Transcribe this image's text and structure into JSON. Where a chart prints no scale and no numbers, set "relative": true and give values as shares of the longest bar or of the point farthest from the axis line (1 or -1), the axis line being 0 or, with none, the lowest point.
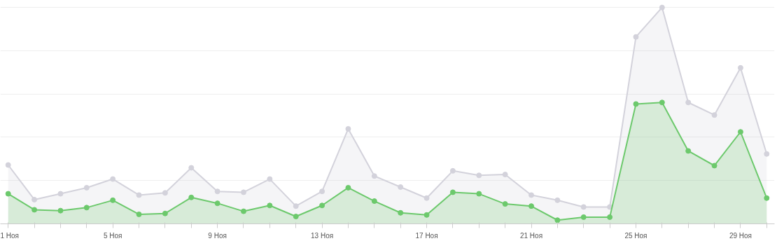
{
  "chart_data": {
    "type": "area",
    "relative": true,
    "marker": "circle",
    "grid": "y",
    "categories": [
      "1 Ноя",
      null,
      null,
      null,
      "5 Ноя",
      null,
      null,
      null,
      "9 Ноя",
      null,
      null,
      null,
      "13 Ноя",
      null,
      null,
      null,
      "17 Ноя",
      null,
      null,
      null,
      "21 Ноя",
      null,
      null,
      null,
      "25 Ноя",
      null,
      null,
      null,
      "29 Ноя",
      null
    ],
    "series": [
      {
        "color": "#d3d2db",
        "values": [
          0.272,
          0.112,
          0.139,
          0.167,
          0.207,
          0.133,
          0.143,
          0.259,
          0.15,
          0.146,
          0.207,
          0.082,
          0.15,
          0.439,
          0.221,
          0.17,
          0.119,
          0.245,
          0.224,
          0.228,
          0.133,
          0.109,
          0.078,
          0.078,
          0.864,
          1,
          0.561,
          0.503,
          0.721,
          0.323
        ]
      },
      {
        "color": "#6cc96c",
        "values": [
          0.139,
          0.065,
          0.061,
          0.075,
          0.109,
          0.044,
          0.048,
          0.122,
          0.095,
          0.058,
          0.085,
          0.034,
          0.085,
          0.167,
          0.105,
          0.051,
          0.041,
          0.146,
          0.139,
          0.092,
          0.082,
          0.017,
          0.031,
          0.031,
          0.554,
          0.561,
          0.337,
          0.269,
          0.425,
          0.119
        ]
      }
    ]
  }
}
